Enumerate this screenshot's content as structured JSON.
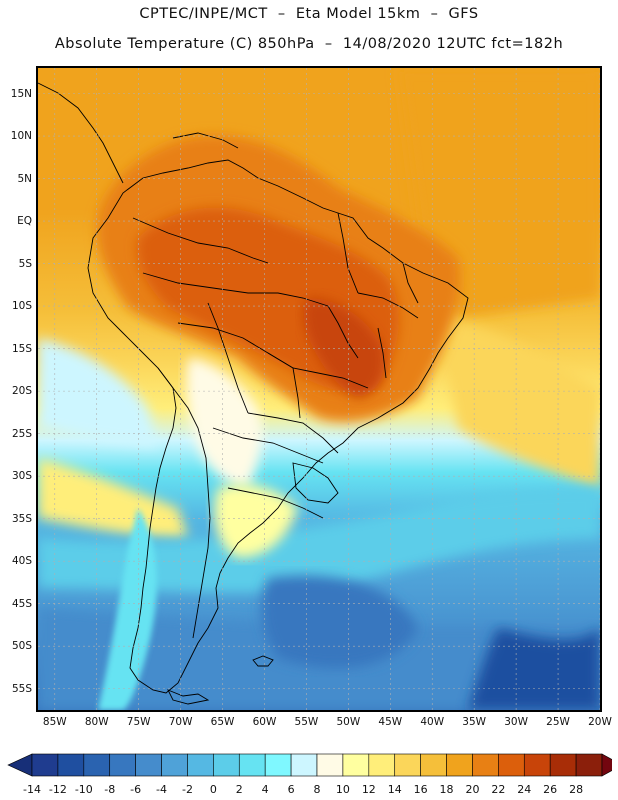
{
  "header": {
    "line1": "CPTEC/INPE/MCT  –  Eta Model 15km  –  GFS",
    "line2": "Absolute Temperature (C) 850hPa  –  14/08/2020 12UTC fct=182h"
  },
  "map": {
    "lat_labels": [
      "15N",
      "10N",
      "5N",
      "EQ",
      "5S",
      "10S",
      "15S",
      "20S",
      "25S",
      "30S",
      "35S",
      "40S",
      "45S",
      "50S",
      "55S"
    ],
    "lon_labels": [
      "85W",
      "80W",
      "75W",
      "70W",
      "65W",
      "60W",
      "55W",
      "50W",
      "45W",
      "40W",
      "35W",
      "30W",
      "25W",
      "20W"
    ],
    "lat_range": [
      18,
      -57.5
    ],
    "lon_range": [
      -87,
      -20
    ]
  },
  "colorbar": {
    "ticks": [
      "-14",
      "-12",
      "-10",
      "-8",
      "-6",
      "-4",
      "-2",
      "0",
      "2",
      "4",
      "6",
      "8",
      "10",
      "12",
      "14",
      "16",
      "18",
      "20",
      "22",
      "24",
      "26",
      "28"
    ],
    "colors": [
      "#1f3c8f",
      "#1f4fa0",
      "#2a63b0",
      "#3777bf",
      "#458ccc",
      "#4fa2d8",
      "#55b8e3",
      "#5ccde9",
      "#66e3f2",
      "#7ff8ff",
      "#cdf6ff",
      "#fffbe6",
      "#ffffa0",
      "#ffee7a",
      "#fbd65a",
      "#f5bf3a",
      "#f0a31d",
      "#e88014",
      "#dc5f0c",
      "#c84409",
      "#a82d07",
      "#8b1f0b"
    ],
    "under_color": "#172f78",
    "over_color": "#73060f"
  }
}
